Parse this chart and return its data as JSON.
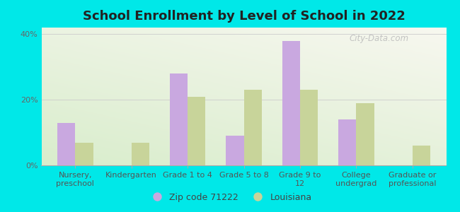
{
  "title": "School Enrollment by Level of School in 2022",
  "categories": [
    "Nursery,\npreschool",
    "Kindergarten",
    "Grade 1 to 4",
    "Grade 5 to 8",
    "Grade 9 to\n12",
    "College\nundergrad",
    "Graduate or\nprofessional"
  ],
  "zip_values": [
    13,
    0,
    28,
    9,
    38,
    14,
    0
  ],
  "louisiana_values": [
    7,
    7,
    21,
    23,
    23,
    19,
    6
  ],
  "zip_color": "#c9a8e0",
  "louisiana_color": "#c8d49a",
  "ylim": [
    0,
    42
  ],
  "yticks": [
    0,
    20,
    40
  ],
  "ytick_labels": [
    "0%",
    "20%",
    "40%"
  ],
  "background_color": "#00e8e8",
  "bar_width": 0.32,
  "legend_zip_label": "Zip code 71222",
  "legend_louisiana_label": "Louisiana",
  "watermark": "City-Data.com",
  "title_fontsize": 13,
  "tick_fontsize": 8,
  "legend_fontsize": 9
}
